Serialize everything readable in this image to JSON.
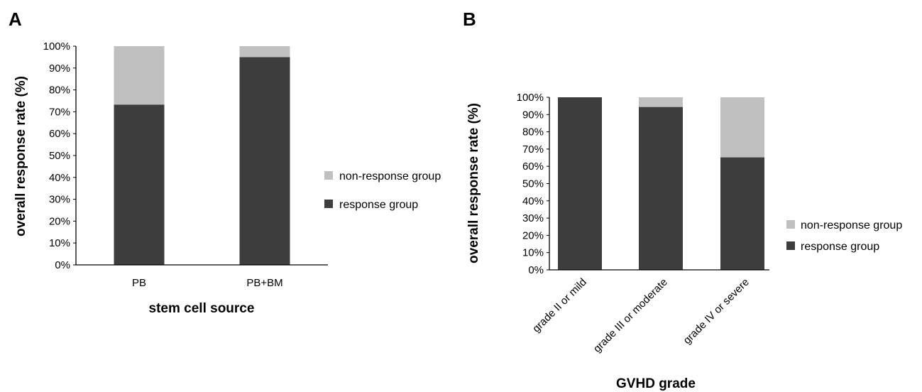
{
  "chart_data": [
    {
      "panel": "A",
      "type": "bar",
      "stacked": true,
      "categories": [
        "PB",
        "PB+BM"
      ],
      "series": [
        {
          "name": "response group",
          "values": [
            73.3,
            95.0
          ],
          "color": "#3d3d3d"
        },
        {
          "name": "non-response group",
          "values": [
            26.7,
            5.0
          ],
          "color": "#c0c0c0"
        }
      ],
      "xlabel": "stem cell source",
      "ylabel": "overall response rate (%)",
      "ylim": [
        0,
        100
      ],
      "yticks": [
        "0%",
        "10%",
        "20%",
        "30%",
        "40%",
        "50%",
        "60%",
        "70%",
        "80%",
        "90%",
        "100%"
      ],
      "legend": [
        "non-response group",
        "response group"
      ],
      "legend_position": "right",
      "grid": false
    },
    {
      "panel": "B",
      "type": "bar",
      "stacked": true,
      "categories": [
        "grade II or mild",
        "grade III or moderate",
        "grade IV or severe"
      ],
      "series": [
        {
          "name": "response group",
          "values": [
            100,
            94.4,
            65.2
          ],
          "color": "#3d3d3d"
        },
        {
          "name": "non-response group",
          "values": [
            0,
            5.6,
            34.8
          ],
          "color": "#c0c0c0"
        }
      ],
      "xlabel": "GVHD grade",
      "ylabel": "overall response rate (%)",
      "ylim": [
        0,
        100
      ],
      "yticks": [
        "0%",
        "10%",
        "20%",
        "30%",
        "40%",
        "50%",
        "60%",
        "70%",
        "80%",
        "90%",
        "100%"
      ],
      "legend": [
        "non-response group",
        "response group"
      ],
      "legend_position": "bottom-right",
      "grid": false
    }
  ]
}
